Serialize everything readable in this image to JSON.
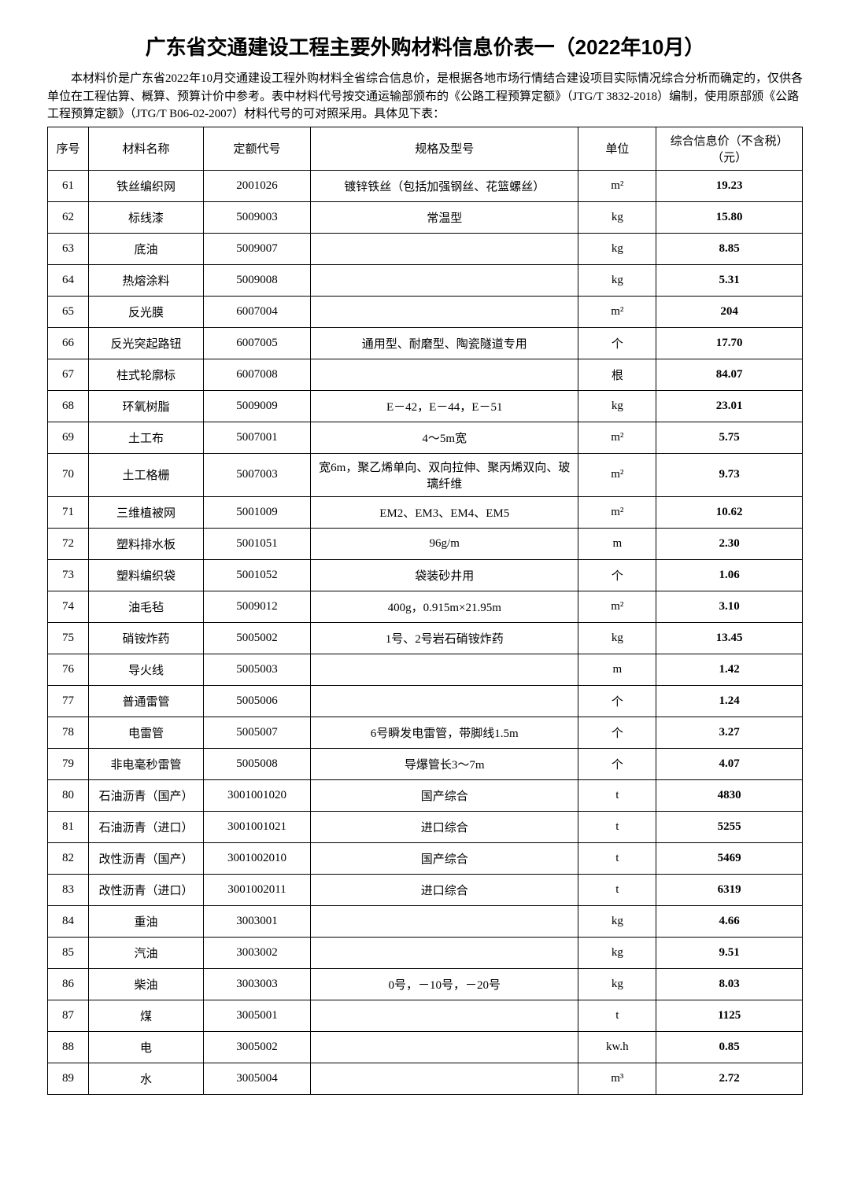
{
  "title": "广东省交通建设工程主要外购材料信息价表一（2022年10月）",
  "intro": "本材料价是广东省2022年10月交通建设工程外购材料全省综合信息价，是根据各地市场行情结合建设项目实际情况综合分析而确定的，仅供各单位在工程估算、概算、预算计价中参考。表中材料代号按交通运输部颁布的《公路工程预算定额》（JTG/T 3832-2018）编制，使用原部颁《公路工程预算定额》（JTG/T B06-02-2007）材料代号的可对照采用。具体见下表：",
  "columns": [
    "序号",
    "材料名称",
    "定额代号",
    "规格及型号",
    "单位",
    "综合信息价（不含税）（元）"
  ],
  "rows": [
    [
      "61",
      "铁丝编织网",
      "2001026",
      "镀锌铁丝（包括加强钢丝、花篮螺丝）",
      "m²",
      "19.23"
    ],
    [
      "62",
      "标线漆",
      "5009003",
      "常温型",
      "kg",
      "15.80"
    ],
    [
      "63",
      "底油",
      "5009007",
      "",
      "kg",
      "8.85"
    ],
    [
      "64",
      "热熔涂料",
      "5009008",
      "",
      "kg",
      "5.31"
    ],
    [
      "65",
      "反光膜",
      "6007004",
      "",
      "m²",
      "204"
    ],
    [
      "66",
      "反光突起路钮",
      "6007005",
      "通用型、耐磨型、陶瓷隧道专用",
      "个",
      "17.70"
    ],
    [
      "67",
      "柱式轮廓标",
      "6007008",
      "",
      "根",
      "84.07"
    ],
    [
      "68",
      "环氧树脂",
      "5009009",
      "E－42，E－44，E－51",
      "kg",
      "23.01"
    ],
    [
      "69",
      "土工布",
      "5007001",
      "4～5m宽",
      "m²",
      "5.75"
    ],
    [
      "70",
      "土工格栅",
      "5007003",
      "宽6m，聚乙烯单向、双向拉伸、聚丙烯双向、玻璃纤维",
      "m²",
      "9.73"
    ],
    [
      "71",
      "三维植被网",
      "5001009",
      "EM2、EM3、EM4、EM5",
      "m²",
      "10.62"
    ],
    [
      "72",
      "塑料排水板",
      "5001051",
      "96g/m",
      "m",
      "2.30"
    ],
    [
      "73",
      "塑料编织袋",
      "5001052",
      "袋装砂井用",
      "个",
      "1.06"
    ],
    [
      "74",
      "油毛毡",
      "5009012",
      "400g，0.915m×21.95m",
      "m²",
      "3.10"
    ],
    [
      "75",
      "硝铵炸药",
      "5005002",
      "1号、2号岩石硝铵炸药",
      "kg",
      "13.45"
    ],
    [
      "76",
      "导火线",
      "5005003",
      "",
      "m",
      "1.42"
    ],
    [
      "77",
      "普通雷管",
      "5005006",
      "",
      "个",
      "1.24"
    ],
    [
      "78",
      "电雷管",
      "5005007",
      "6号瞬发电雷管，带脚线1.5m",
      "个",
      "3.27"
    ],
    [
      "79",
      "非电毫秒雷管",
      "5005008",
      "导爆管长3～7m",
      "个",
      "4.07"
    ],
    [
      "80",
      "石油沥青（国产）",
      "3001001020",
      "国产综合",
      "t",
      "4830"
    ],
    [
      "81",
      "石油沥青（进口）",
      "3001001021",
      "进口综合",
      "t",
      "5255"
    ],
    [
      "82",
      "改性沥青（国产）",
      "3001002010",
      "国产综合",
      "t",
      "5469"
    ],
    [
      "83",
      "改性沥青（进口）",
      "3001002011",
      "进口综合",
      "t",
      "6319"
    ],
    [
      "84",
      "重油",
      "3003001",
      "",
      "kg",
      "4.66"
    ],
    [
      "85",
      "汽油",
      "3003002",
      "",
      "kg",
      "9.51"
    ],
    [
      "86",
      "柴油",
      "3003003",
      "0号，－10号，－20号",
      "kg",
      "8.03"
    ],
    [
      "87",
      "煤",
      "3005001",
      "",
      "t",
      "1125"
    ],
    [
      "88",
      "电",
      "3005002",
      "",
      "kw.h",
      "0.85"
    ],
    [
      "89",
      "水",
      "3005004",
      "",
      "m³",
      "2.72"
    ]
  ]
}
